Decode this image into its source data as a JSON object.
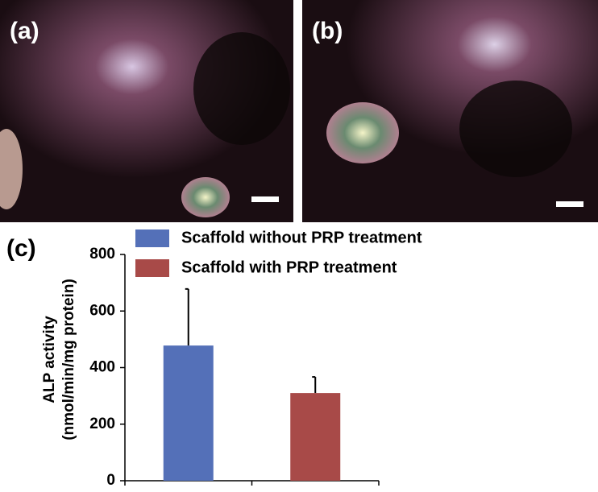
{
  "panels": [
    "(a)",
    "(b)"
  ],
  "chart_data": {
    "type": "bar",
    "panel_label": "(c)",
    "y_label": [
      "ALP activity",
      "(nmol/min/mg protein)"
    ],
    "ylim": [
      0,
      800
    ],
    "yticks": [
      0,
      200,
      400,
      600,
      800
    ],
    "series": [
      {
        "name": "Scaffold without PRP treatment",
        "color": "#5470b8",
        "values": [
          478
        ],
        "errors": [
          200
        ]
      },
      {
        "name": "Scaffold with PRP treatment",
        "color": "#a84a48",
        "values": [
          310
        ],
        "errors": [
          57
        ]
      }
    ]
  }
}
